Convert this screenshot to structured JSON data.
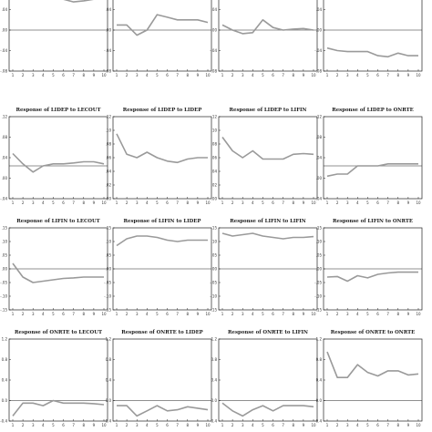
{
  "chart_data": [
    {
      "type": "line",
      "title": "",
      "x": [
        1,
        2,
        3,
        4,
        5,
        6,
        7,
        8,
        9,
        10
      ],
      "values": [
        0.085,
        0.085,
        0.07,
        0.06,
        0.065,
        0.06,
        0.055,
        0.057,
        0.06,
        0.06
      ],
      "ylim": [
        -0.08,
        0.08
      ],
      "yticks": [
        ".08",
        ".04",
        ".00",
        "-.04",
        "-.08"
      ],
      "xticks": [
        "1",
        "2",
        "3",
        "4",
        "5",
        "6",
        "7",
        "8",
        "9",
        "10"
      ]
    },
    {
      "type": "line",
      "title": "",
      "x": [
        1,
        2,
        3,
        4,
        5,
        6,
        7,
        8,
        9,
        10
      ],
      "values": [
        0.01,
        0.01,
        -0.01,
        0.0,
        0.03,
        0.025,
        0.02,
        0.02,
        0.02,
        0.015
      ],
      "ylim": [
        -0.08,
        0.08
      ],
      "yticks": [
        ".08",
        ".04",
        ".00",
        "-.04",
        "-.08"
      ],
      "xticks": [
        "1",
        "2",
        "3",
        "4",
        "5",
        "6",
        "7",
        "8",
        "9",
        "10"
      ]
    },
    {
      "type": "line",
      "title": "",
      "x": [
        1,
        2,
        3,
        4,
        5,
        6,
        7,
        8,
        9,
        10
      ],
      "values": [
        0.01,
        0.0,
        -0.007,
        -0.005,
        0.02,
        0.005,
        0.0,
        0.002,
        0.003,
        0.0
      ],
      "ylim": [
        -0.08,
        0.08
      ],
      "yticks": [
        ".08",
        ".04",
        ".00",
        "-.04",
        "-.08"
      ],
      "xticks": [
        "1",
        "2",
        "3",
        "4",
        "5",
        "6",
        "7",
        "8",
        "9",
        "10"
      ]
    },
    {
      "type": "line",
      "title": "",
      "x": [
        1,
        2,
        3,
        4,
        5,
        6,
        7,
        8,
        9,
        10
      ],
      "values": [
        -0.035,
        -0.04,
        -0.042,
        -0.042,
        -0.042,
        -0.05,
        -0.052,
        -0.045,
        -0.05,
        -0.05
      ],
      "ylim": [
        -0.08,
        0.08
      ],
      "yticks": [
        ".08",
        ".04",
        ".00",
        "-.04",
        "-.08"
      ],
      "xticks": [
        "1",
        "2",
        "3",
        "4",
        "5",
        "6",
        "7",
        "8",
        "9",
        "10"
      ]
    },
    {
      "type": "line",
      "title": "Response of LIDEP to LECOUT",
      "x": [
        1,
        2,
        3,
        4,
        5,
        6,
        7,
        8,
        9,
        10
      ],
      "values": [
        0.03,
        0.005,
        -0.015,
        0.0,
        0.005,
        0.005,
        0.007,
        0.01,
        0.01,
        0.005
      ],
      "ylim": [
        -0.08,
        0.12
      ],
      "yticks": [
        ".12",
        ".08",
        ".04",
        ".00",
        "-.04"
      ],
      "xticks": [
        "1",
        "2",
        "3",
        "4",
        "5",
        "6",
        "7",
        "8",
        "9",
        "10"
      ]
    },
    {
      "type": "line",
      "title": "Response of LIDEP to LIDEP",
      "x": [
        1,
        2,
        3,
        4,
        5,
        6,
        7,
        8,
        9,
        10
      ],
      "values": [
        0.095,
        0.065,
        0.06,
        0.068,
        0.06,
        0.055,
        0.053,
        0.058,
        0.06,
        0.06
      ],
      "ylim": [
        0.0,
        0.12
      ],
      "yticks": [
        ".12",
        ".10",
        ".08",
        ".06",
        ".04",
        ".02",
        ".00"
      ],
      "xticks": [
        "1",
        "2",
        "3",
        "4",
        "5",
        "6",
        "7",
        "8",
        "9",
        "10"
      ]
    },
    {
      "type": "line",
      "title": "Response of LIDEP to LIFIN",
      "x": [
        1,
        2,
        3,
        4,
        5,
        6,
        7,
        8,
        9,
        10
      ],
      "values": [
        0.09,
        0.07,
        0.06,
        0.07,
        0.058,
        0.058,
        0.058,
        0.065,
        0.066,
        0.065
      ],
      "ylim": [
        0.0,
        0.12
      ],
      "yticks": [
        ".12",
        ".10",
        ".08",
        ".06",
        ".04",
        ".02",
        ".00"
      ],
      "xticks": [
        "1",
        "2",
        "3",
        "4",
        "5",
        "6",
        "7",
        "8",
        "9",
        "10"
      ]
    },
    {
      "type": "line",
      "title": "Response of LIDEP to ONRTE",
      "x": [
        1,
        2,
        3,
        4,
        5,
        6,
        7,
        8,
        9,
        10
      ],
      "values": [
        -0.025,
        -0.02,
        -0.02,
        0.0,
        0.0,
        0.0,
        0.005,
        0.005,
        0.005,
        0.005
      ],
      "ylim": [
        -0.08,
        0.12
      ],
      "yticks": [
        ".12",
        ".08",
        ".04",
        ".00",
        "-.04"
      ],
      "xticks": [
        "1",
        "2",
        "3",
        "4",
        "5",
        "6",
        "7",
        "8",
        "9",
        "10"
      ]
    },
    {
      "type": "line",
      "title": "Response of LIFIN to LECOUT",
      "x": [
        1,
        2,
        3,
        4,
        5,
        6,
        7,
        8,
        9,
        10
      ],
      "values": [
        0.02,
        -0.03,
        -0.05,
        -0.045,
        -0.04,
        -0.035,
        -0.033,
        -0.03,
        -0.03,
        -0.03
      ],
      "ylim": [
        -0.15,
        0.15
      ],
      "yticks": [
        ".15",
        ".10",
        ".05",
        ".00",
        "-.05",
        "-.10",
        "-.15"
      ],
      "xticks": [
        "1",
        "2",
        "3",
        "4",
        "5",
        "6",
        "7",
        "8",
        "9",
        "10"
      ]
    },
    {
      "type": "line",
      "title": "Response of LIFIN to LIDEP",
      "x": [
        1,
        2,
        3,
        4,
        5,
        6,
        7,
        8,
        9,
        10
      ],
      "values": [
        0.085,
        0.11,
        0.12,
        0.12,
        0.115,
        0.105,
        0.1,
        0.105,
        0.105,
        0.105
      ],
      "ylim": [
        -0.15,
        0.15
      ],
      "yticks": [
        ".15",
        ".10",
        ".05",
        ".00",
        "-.05",
        "-.10",
        "-.15"
      ],
      "xticks": [
        "1",
        "2",
        "3",
        "4",
        "5",
        "6",
        "7",
        "8",
        "9",
        "10"
      ]
    },
    {
      "type": "line",
      "title": "Response of LIFIN to LIFIN",
      "x": [
        1,
        2,
        3,
        4,
        5,
        6,
        7,
        8,
        9,
        10
      ],
      "values": [
        0.13,
        0.12,
        0.125,
        0.13,
        0.12,
        0.115,
        0.11,
        0.115,
        0.115,
        0.118
      ],
      "ylim": [
        -0.15,
        0.15
      ],
      "yticks": [
        ".15",
        ".10",
        ".05",
        ".00",
        "-.05",
        "-.10",
        "-.15"
      ],
      "xticks": [
        "1",
        "2",
        "3",
        "4",
        "5",
        "6",
        "7",
        "8",
        "9",
        "10"
      ]
    },
    {
      "type": "line",
      "title": "Response of LIFIN to ONRTE",
      "x": [
        1,
        2,
        3,
        4,
        5,
        6,
        7,
        8,
        9,
        10
      ],
      "values": [
        -0.03,
        -0.028,
        -0.045,
        -0.025,
        -0.033,
        -0.02,
        -0.015,
        -0.012,
        -0.012,
        -0.012
      ],
      "ylim": [
        -0.15,
        0.15
      ],
      "yticks": [
        ".15",
        ".10",
        ".05",
        ".00",
        "-.05",
        "-.10",
        "-.15"
      ],
      "xticks": [
        "1",
        "2",
        "3",
        "4",
        "5",
        "6",
        "7",
        "8",
        "9",
        "10"
      ]
    },
    {
      "type": "line",
      "title": "Response of ONRTE to LECOUT",
      "x": [
        1,
        2,
        3,
        4,
        5,
        6,
        7,
        8,
        9,
        10
      ],
      "values": [
        -0.3,
        -0.05,
        -0.05,
        -0.1,
        0.0,
        -0.05,
        -0.05,
        -0.05,
        -0.06,
        -0.08
      ],
      "ylim": [
        -0.4,
        1.2
      ],
      "yticks": [
        "1.2",
        "0.8",
        "0.4",
        "0.0",
        "-0.4"
      ],
      "xticks": [
        "1",
        "2",
        "3",
        "4",
        "5",
        "6",
        "7",
        "8",
        "9",
        "10"
      ]
    },
    {
      "type": "line",
      "title": "Response of ONRTE to LIDEP",
      "x": [
        1,
        2,
        3,
        4,
        5,
        6,
        7,
        8,
        9,
        10
      ],
      "values": [
        -0.1,
        -0.1,
        -0.3,
        -0.2,
        -0.1,
        -0.2,
        -0.18,
        -0.12,
        -0.15,
        -0.18
      ],
      "ylim": [
        -0.4,
        1.2
      ],
      "yticks": [
        "1.2",
        "0.8",
        "0.4",
        "0.0",
        "-0.4"
      ],
      "xticks": [
        "1",
        "2",
        "3",
        "4",
        "5",
        "6",
        "7",
        "8",
        "9",
        "10"
      ]
    },
    {
      "type": "line",
      "title": "Response of ONRTE to LIFIN",
      "x": [
        1,
        2,
        3,
        4,
        5,
        6,
        7,
        8,
        9,
        10
      ],
      "values": [
        -0.05,
        -0.2,
        -0.3,
        -0.18,
        -0.1,
        -0.2,
        -0.1,
        -0.1,
        -0.1,
        -0.12
      ],
      "ylim": [
        -0.4,
        1.2
      ],
      "yticks": [
        "1.2",
        "0.8",
        "0.4",
        "0.0",
        "-0.4"
      ],
      "xticks": [
        "1",
        "2",
        "3",
        "4",
        "5",
        "6",
        "7",
        "8",
        "9",
        "10"
      ]
    },
    {
      "type": "line",
      "title": "Response of ONRTE to ONRTE",
      "x": [
        1,
        2,
        3,
        4,
        5,
        6,
        7,
        8,
        9,
        10
      ],
      "values": [
        0.95,
        0.45,
        0.45,
        0.7,
        0.55,
        0.48,
        0.58,
        0.58,
        0.5,
        0.52
      ],
      "ylim": [
        -0.4,
        1.2
      ],
      "yticks": [
        "1.2",
        "0.8",
        "0.4",
        "0.0",
        "-0.4"
      ],
      "xticks": [
        "1",
        "2",
        "3",
        "4",
        "5",
        "6",
        "7",
        "8",
        "9",
        "10"
      ]
    }
  ]
}
